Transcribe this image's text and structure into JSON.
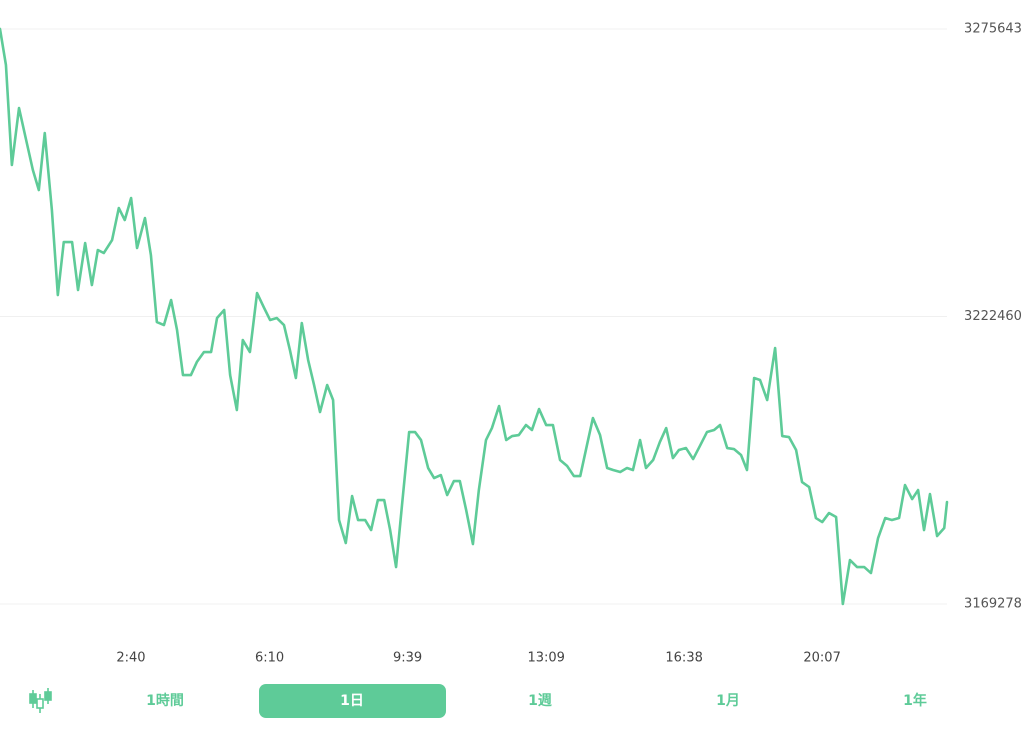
{
  "chart_data": {
    "type": "line",
    "x": [
      -0.64,
      -0.49,
      -0.34,
      -0.16,
      0.02,
      0.19,
      0.34,
      0.49,
      0.67,
      0.82,
      0.97,
      1.18,
      1.33,
      1.51,
      1.68,
      1.83,
      1.98,
      2.19,
      2.36,
      2.51,
      2.67,
      2.82,
      3.02,
      3.17,
      3.32,
      3.5,
      3.68,
      3.83,
      3.98,
      4.18,
      4.33,
      4.51,
      4.69,
      4.84,
      5.02,
      5.17,
      5.34,
      5.49,
      5.67,
      5.85,
      6.03,
      6.18,
      6.35,
      6.53,
      6.68,
      6.83,
      6.98,
      7.14,
      7.29,
      7.44,
      7.62,
      7.77,
      7.92,
      8.09,
      8.25,
      8.4,
      8.58,
      8.73,
      8.9,
      9.06,
      9.21,
      9.36,
      9.51,
      9.69,
      9.84,
      9.99,
      10.17,
      10.32,
      10.49,
      10.65,
      10.82,
      10.97,
      11.13,
      11.3,
      11.45,
      11.63,
      11.78,
      11.96,
      12.14,
      12.29,
      12.46,
      12.64,
      12.79,
      12.97,
      13.15,
      13.32,
      13.5,
      13.68,
      13.85,
      14.01,
      14.18,
      14.33,
      14.51,
      14.69,
      14.84,
      15.02,
      15.19,
      15.34,
      15.52,
      15.67,
      15.85,
      16.02,
      16.18,
      16.35,
      16.5,
      16.68,
      16.86,
      17.03,
      17.21,
      17.39,
      17.54,
      17.72,
      17.89,
      18.07,
      18.22,
      18.4,
      18.55,
      18.73,
      18.93,
      19.11,
      19.28,
      19.46,
      19.61,
      19.79,
      19.96,
      20.12,
      20.29,
      20.47,
      20.64,
      20.82,
      21.0,
      21.18,
      21.35,
      21.53,
      21.71,
      21.88,
      22.06,
      22.21,
      22.39,
      22.54,
      22.69,
      22.84,
      23.02,
      23.2,
      23.27
    ],
    "series": [
      {
        "color": "#5ecb98",
        "values": [
          3275643,
          3268983,
          3250483,
          3261028,
          3255108,
          3249558,
          3245858,
          3256403,
          3242158,
          3226433,
          3236238,
          3236238,
          3227358,
          3236053,
          3228283,
          3234758,
          3234203,
          3236608,
          3242528,
          3240308,
          3244378,
          3235128,
          3240678,
          3233833,
          3221438,
          3220883,
          3225508,
          3219958,
          3211633,
          3211633,
          3214038,
          3215888,
          3215888,
          3222178,
          3223658,
          3211633,
          3205158,
          3218108,
          3215888,
          3226803,
          3224028,
          3221808,
          3222178,
          3220883,
          3216258,
          3211078,
          3221253,
          3214408,
          3209783,
          3204788,
          3209783,
          3207008,
          3184808,
          3180553,
          3189248,
          3184808,
          3184808,
          3182958,
          3188508,
          3188508,
          3182958,
          3176113,
          3187583,
          3201088,
          3201088,
          3199608,
          3194428,
          3192578,
          3193133,
          3189433,
          3192023,
          3192023,
          3186658,
          3180368,
          3190358,
          3199608,
          3201828,
          3205898,
          3199608,
          3200348,
          3200533,
          3202383,
          3201458,
          3205343,
          3202383,
          3202383,
          3195908,
          3194798,
          3192948,
          3192948,
          3198683,
          3203678,
          3200533,
          3194428,
          3194058,
          3193688,
          3194428,
          3194058,
          3199608,
          3194428,
          3195908,
          3199238,
          3201828,
          3196278,
          3197758,
          3198128,
          3196093,
          3198498,
          3201088,
          3201458,
          3202383,
          3198128,
          3197943,
          3196833,
          3194058,
          3211078,
          3210708,
          3207008,
          3216628,
          3200348,
          3200163,
          3197758,
          3191838,
          3190913,
          3185178,
          3184438,
          3186103,
          3185363,
          3169278,
          3177408,
          3176113,
          3176113,
          3175003,
          3181478,
          3185178,
          3184808,
          3185178,
          3191283,
          3188693,
          3190358,
          3182958,
          3189618,
          3181848,
          3183328,
          3188138
        ]
      }
    ],
    "xlim": [
      -0.64,
      23.27
    ],
    "xticks": [
      {
        "value": 2.667,
        "label": "2:40"
      },
      {
        "value": 6.167,
        "label": "6:10"
      },
      {
        "value": 9.65,
        "label": "9:39"
      },
      {
        "value": 13.15,
        "label": "13:09"
      },
      {
        "value": 16.633,
        "label": "16:38"
      },
      {
        "value": 20.117,
        "label": "20:07"
      }
    ],
    "ylim": [
      3169278,
      3275643
    ],
    "yticks": [
      3169278,
      3222460,
      3275643
    ],
    "grid": true
  },
  "controls": {
    "ranges": [
      "1時間",
      "1日",
      "1週",
      "1月",
      "1年"
    ],
    "selected": "1日"
  }
}
